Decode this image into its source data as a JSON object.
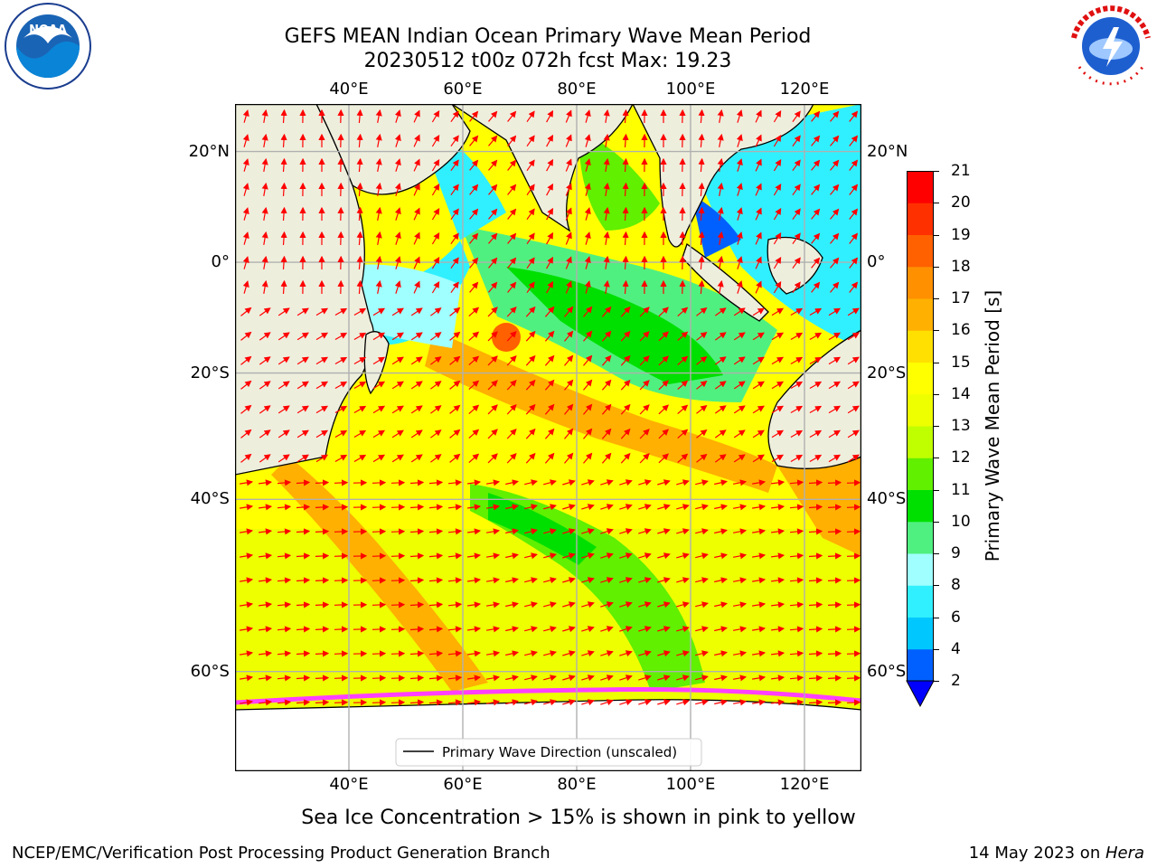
{
  "header": {
    "title_line1": "GEFS MEAN Indian Ocean Primary Wave Mean Period",
    "title_line2": "20230512 t00z 072h fcst   Max: 19.23"
  },
  "logos": {
    "left": {
      "icon": "noaa-logo-icon",
      "text": "NOAA",
      "ring_text": "NATIONAL OCEANIC AND ATMOSPHERIC ADMINISTRATION · U.S. DEPARTMENT OF COMMERCE"
    },
    "right": {
      "icon": "nws-logo-icon",
      "ring_text": "NATIONAL WEATHER SERVICE"
    }
  },
  "map": {
    "lon_ticks": [
      "40°E",
      "60°E",
      "80°E",
      "100°E",
      "120°E"
    ],
    "lat_ticks": [
      "20°N",
      "0°",
      "20°S",
      "40°S",
      "60°S"
    ],
    "lon_range": [
      20,
      130
    ],
    "lat_range": [
      -68,
      28
    ],
    "legend_label": "Primary Wave Direction (unscaled)",
    "colors": {
      "land": "#eeeedd",
      "ice": "#ffffff",
      "grid": "#b0b0b0",
      "arrow": "#ff0000",
      "coast": "#000000"
    }
  },
  "colorbar": {
    "title": "Primary Wave Mean Period [s]",
    "levels": [
      "2",
      "4",
      "6",
      "8",
      "9",
      "10",
      "11",
      "12",
      "13",
      "14",
      "15",
      "16",
      "17",
      "18",
      "19",
      "20",
      "21"
    ],
    "colors": [
      "#0060ff",
      "#00c8ff",
      "#30f0ff",
      "#a0ffff",
      "#50f080",
      "#00e000",
      "#60f000",
      "#c0ff00",
      "#eeff00",
      "#ffff00",
      "#ffe000",
      "#ffb000",
      "#ff9000",
      "#ff6000",
      "#ff3000",
      "#ff0000"
    ],
    "extend_color": "#0000ff"
  },
  "note": "Sea Ice Concentration > 15% is shown in pink to yellow",
  "footer": {
    "left": "NCEP/EMC/Verification Post Processing Product Generation Branch",
    "date": "14 May 2023 on ",
    "host": "Hera"
  }
}
